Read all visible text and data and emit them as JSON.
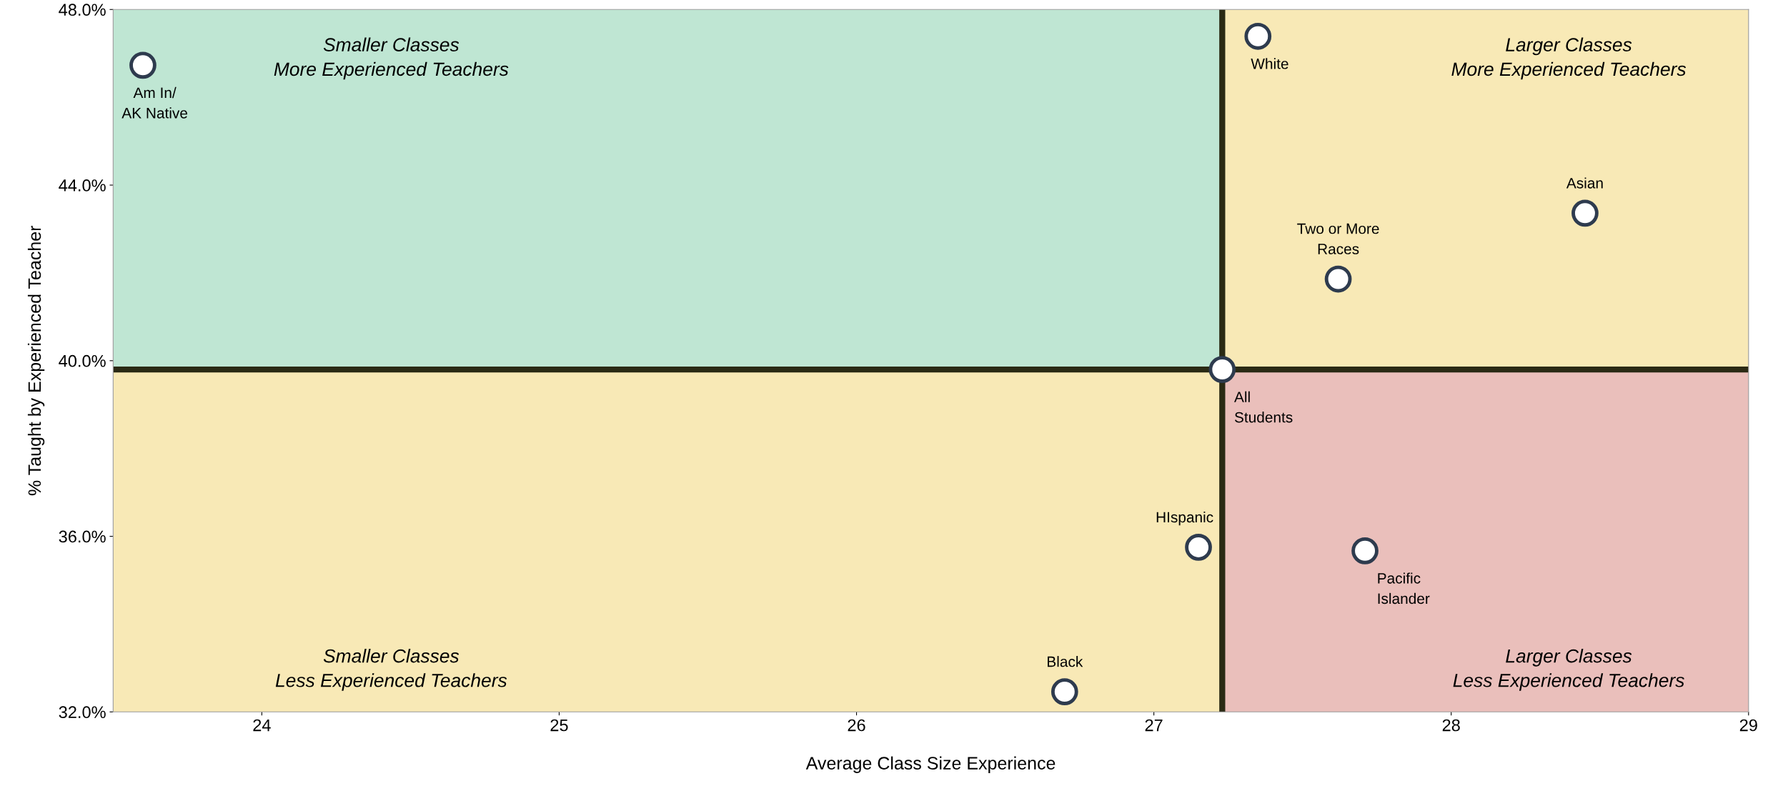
{
  "chart_data": {
    "type": "scatter",
    "xlabel": "Average Class Size Experience",
    "ylabel": "% Taught by Experienced Teacher",
    "x": [
      23.6,
      27.35,
      28.45,
      27.62,
      27.23,
      27.15,
      27.71,
      26.7
    ],
    "series": [
      {
        "color": "#2e3b4e",
        "values": [
          46.73,
          47.39,
          43.36,
          41.86,
          39.8,
          35.75,
          35.67,
          32.46
        ]
      }
    ],
    "marker": "circle",
    "grid": false,
    "xlim": [
      23.5,
      29
    ],
    "xticks": [
      24,
      25,
      26,
      27,
      28,
      29
    ],
    "ylim": [
      32,
      48
    ],
    "yticks": [
      {
        "value": 32,
        "label": "32.0%"
      },
      {
        "value": 36,
        "label": "36.0%"
      },
      {
        "value": 40,
        "label": "40.0%"
      },
      {
        "value": 44,
        "label": "44.0%"
      },
      {
        "value": 48,
        "label": "48.0%"
      }
    ],
    "ref_lines": [
      {
        "axis": "x",
        "value": 27.23,
        "color": "#2a2a14"
      },
      {
        "axis": "y",
        "value": 39.8,
        "color": "#2a2a14"
      }
    ],
    "annotations": [
      "Smaller Classes\nMore Experienced Teachers",
      "Larger Classes\nMore Experienced Teachers",
      "Smaller Classes\nLess Experienced Teachers",
      "Larger Classes\nLess Experienced Teachers",
      {
        "text": "Am In/\nAK Native",
        "x": 23.6,
        "y": 46.73
      },
      {
        "text": "White",
        "x": 27.35,
        "y": 47.39
      },
      {
        "text": "Asian",
        "x": 28.45,
        "y": 43.36
      },
      {
        "text": "Two or More\nRaces",
        "x": 27.62,
        "y": 41.86
      },
      {
        "text": "All\nStudents",
        "x": 27.23,
        "y": 39.8
      },
      {
        "text": "HIspanic",
        "x": 27.15,
        "y": 35.75
      },
      {
        "text": "Pacific\nIslander",
        "x": 27.71,
        "y": 35.67
      },
      {
        "text": "Black",
        "x": 26.7,
        "y": 32.46
      }
    ]
  }
}
